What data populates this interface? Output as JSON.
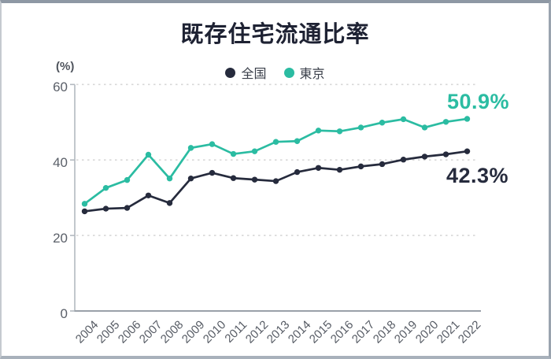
{
  "title": "既存住宅流通比率",
  "unit_label": "(%)",
  "legend": {
    "items": [
      {
        "label": "全国",
        "color": "#262b3d"
      },
      {
        "label": "東京",
        "color": "#2bbca2"
      }
    ]
  },
  "annotations": {
    "tokyo_end": "50.9%",
    "zenkoku_end": "42.3%"
  },
  "colors": {
    "navy": "#262b3d",
    "teal": "#2bbca2",
    "gridline": "#d7d7d7",
    "axis": "#9aa1a9",
    "tick_text": "#5b6069"
  },
  "chart_data": {
    "type": "line",
    "title": "既存住宅流通比率",
    "ylabel": "(%)",
    "categories": [
      2004,
      2005,
      2006,
      2007,
      2008,
      2009,
      2010,
      2011,
      2012,
      2013,
      2014,
      2015,
      2016,
      2017,
      2018,
      2019,
      2020,
      2021,
      2022
    ],
    "series": [
      {
        "name": "全国",
        "color": "#262b3d",
        "values": [
          26.4,
          27.1,
          27.3,
          30.6,
          28.6,
          35.1,
          36.6,
          35.2,
          34.8,
          34.4,
          36.8,
          37.9,
          37.4,
          38.3,
          38.9,
          40.1,
          40.9,
          41.5,
          42.3
        ],
        "end_label": "42.3%"
      },
      {
        "name": "東京",
        "color": "#2bbca2",
        "values": [
          28.4,
          32.6,
          34.7,
          41.4,
          35.1,
          43.2,
          44.2,
          41.6,
          42.3,
          44.8,
          45.0,
          47.8,
          47.6,
          48.6,
          49.9,
          50.8,
          48.6,
          50.1,
          50.9
        ],
        "end_label": "50.9%"
      }
    ],
    "ylim": [
      0,
      60
    ],
    "yticks": [
      0,
      20,
      40,
      60
    ],
    "grid": "horizontal-dashed",
    "legend_position": "top-center"
  }
}
